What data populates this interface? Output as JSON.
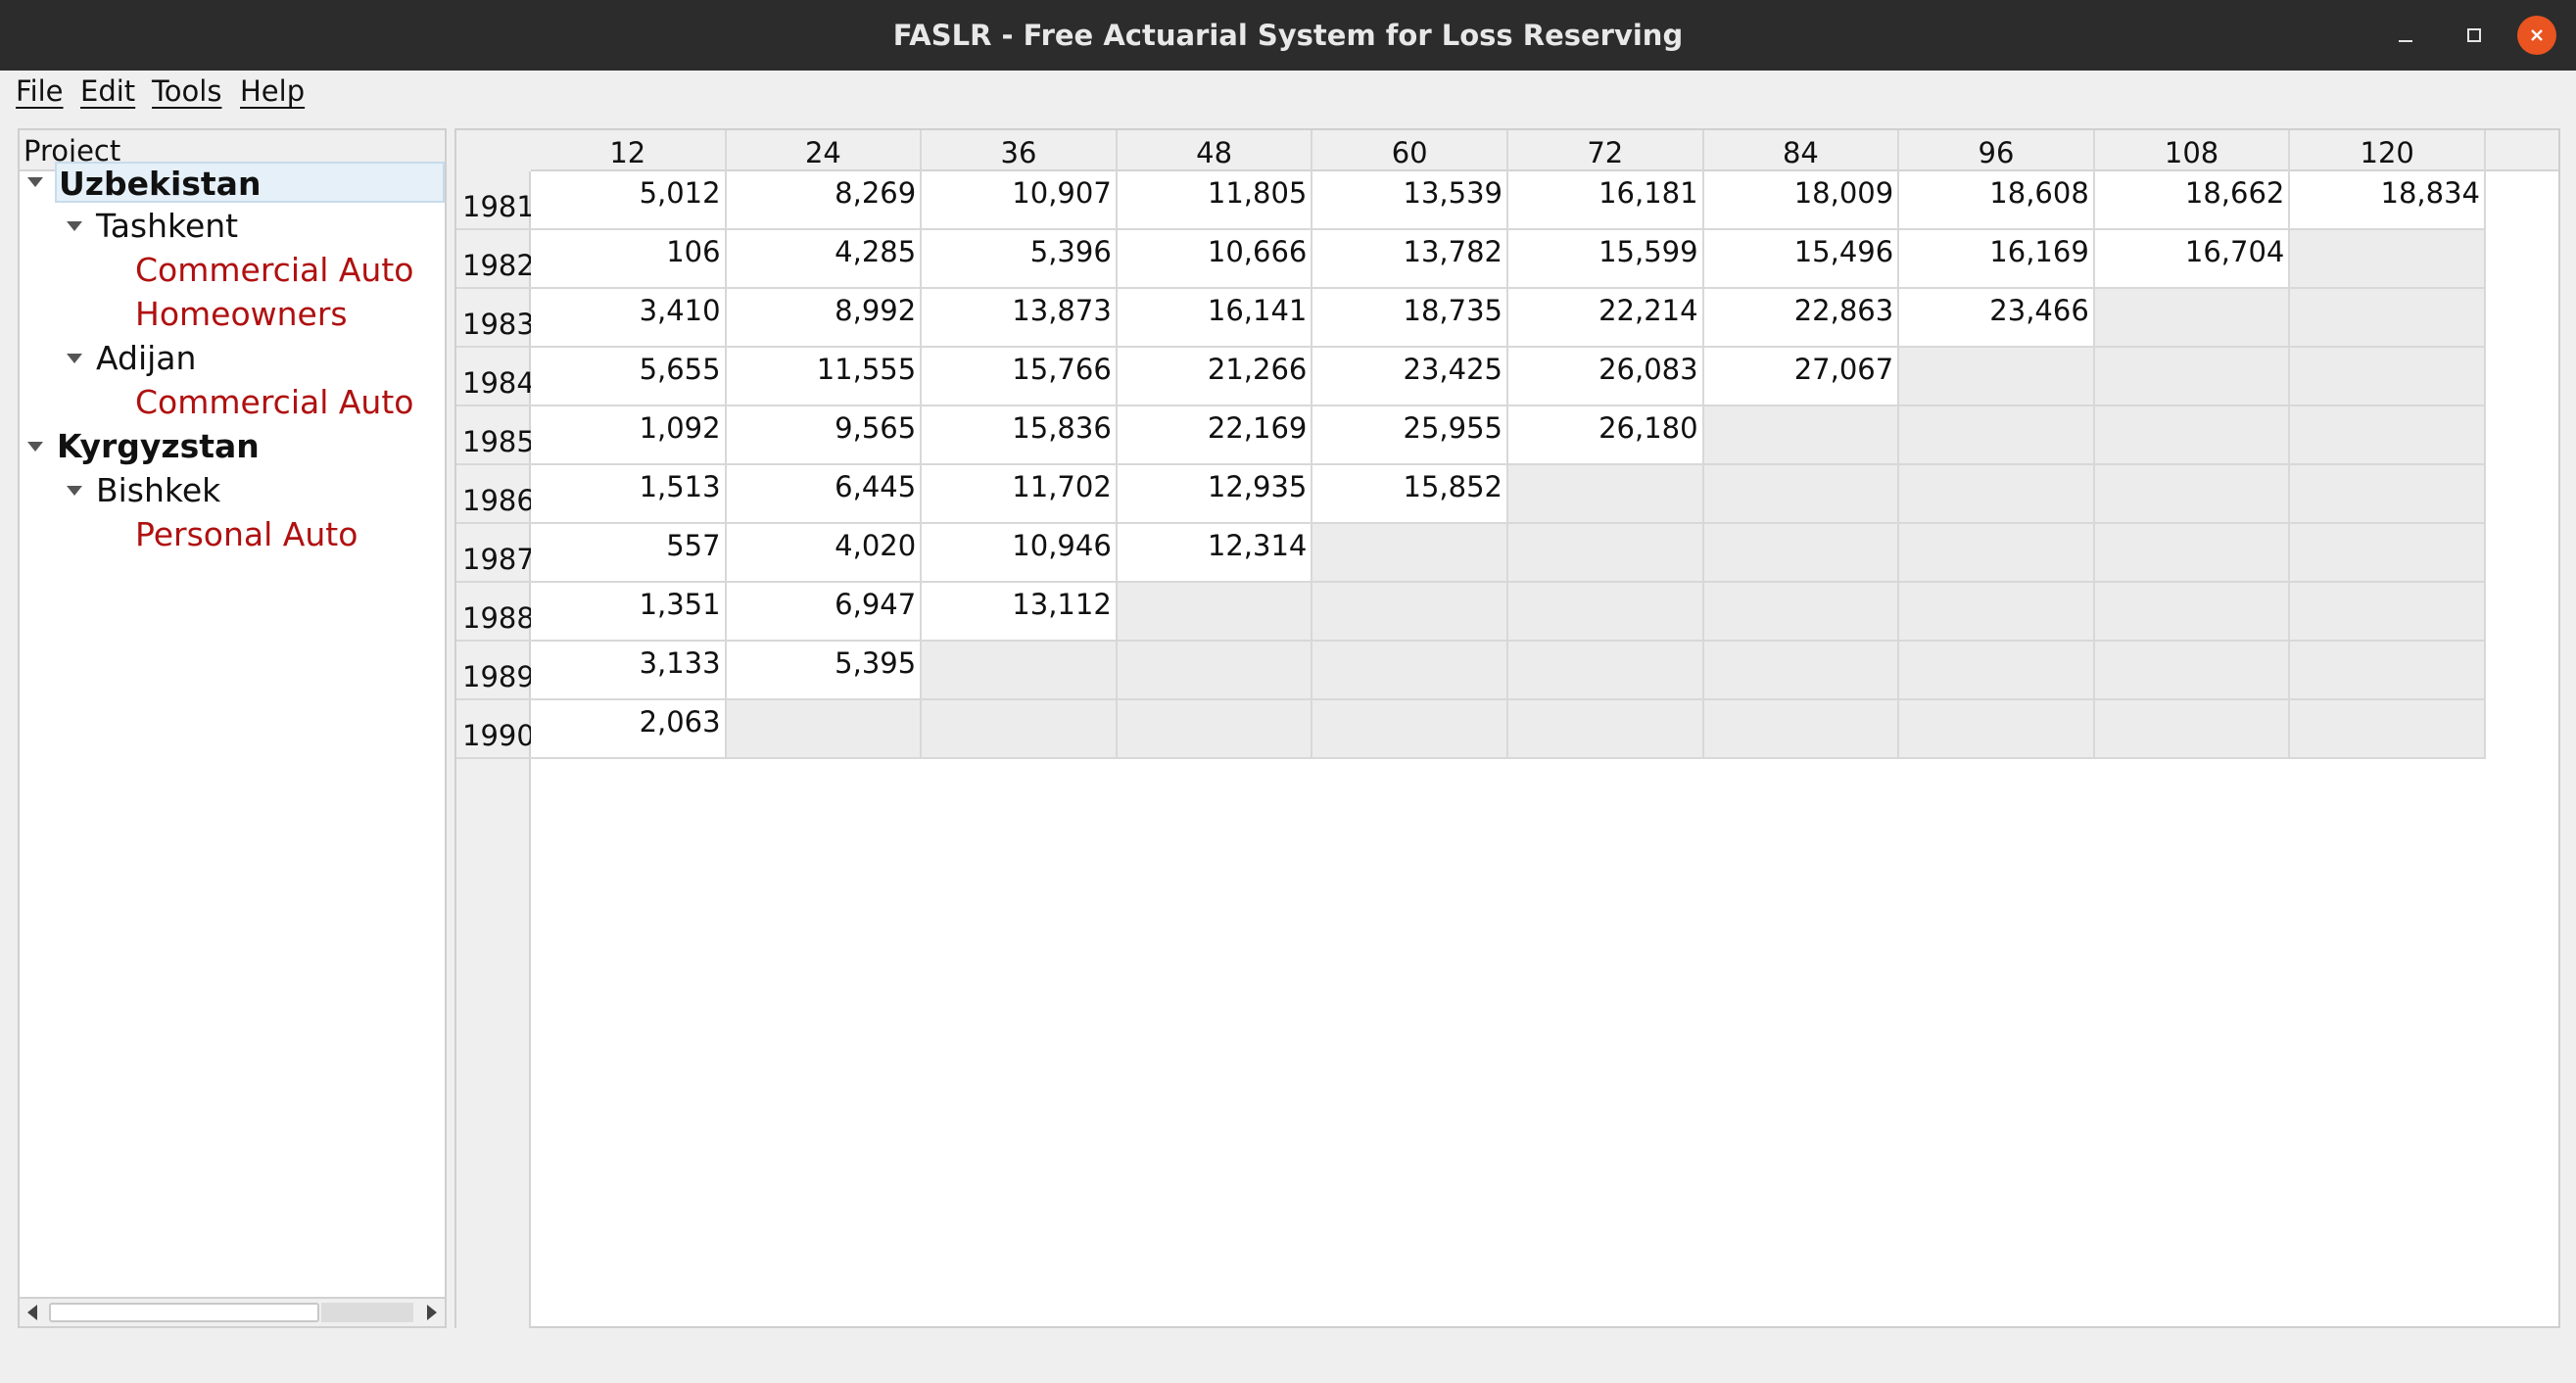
{
  "window": {
    "title": "FASLR - Free Actuarial System for Loss Reserving"
  },
  "menu": {
    "file": "File",
    "edit": "Edit",
    "tools": "Tools",
    "help": "Help"
  },
  "tree": {
    "header": "Project",
    "nodes": [
      {
        "label": "Uzbekistan",
        "level": 0,
        "bold": true,
        "expanded": true,
        "selected": true
      },
      {
        "label": "Tashkent",
        "level": 1,
        "expanded": true
      },
      {
        "label": "Commercial Auto",
        "level": 2,
        "leaf": true
      },
      {
        "label": "Homeowners",
        "level": 2,
        "leaf": true
      },
      {
        "label": "Adijan",
        "level": 1,
        "expanded": true
      },
      {
        "label": "Commercial Auto",
        "level": 2,
        "leaf": true
      },
      {
        "label": "Kyrgyzstan",
        "level": 0,
        "bold": true,
        "expanded": true
      },
      {
        "label": "Bishkek",
        "level": 1,
        "expanded": true
      },
      {
        "label": "Personal Auto",
        "level": 2,
        "leaf": true
      }
    ]
  },
  "triangle": {
    "columns": [
      "12",
      "24",
      "36",
      "48",
      "60",
      "72",
      "84",
      "96",
      "108",
      "120"
    ],
    "rows": [
      {
        "origin": "1981",
        "values": [
          "5,012",
          "8,269",
          "10,907",
          "11,805",
          "13,539",
          "16,181",
          "18,009",
          "18,608",
          "18,662",
          "18,834"
        ]
      },
      {
        "origin": "1982",
        "values": [
          "106",
          "4,285",
          "5,396",
          "10,666",
          "13,782",
          "15,599",
          "15,496",
          "16,169",
          "16,704"
        ]
      },
      {
        "origin": "1983",
        "values": [
          "3,410",
          "8,992",
          "13,873",
          "16,141",
          "18,735",
          "22,214",
          "22,863",
          "23,466"
        ]
      },
      {
        "origin": "1984",
        "values": [
          "5,655",
          "11,555",
          "15,766",
          "21,266",
          "23,425",
          "26,083",
          "27,067"
        ]
      },
      {
        "origin": "1985",
        "values": [
          "1,092",
          "9,565",
          "15,836",
          "22,169",
          "25,955",
          "26,180"
        ]
      },
      {
        "origin": "1986",
        "values": [
          "1,513",
          "6,445",
          "11,702",
          "12,935",
          "15,852"
        ]
      },
      {
        "origin": "1987",
        "values": [
          "557",
          "4,020",
          "10,946",
          "12,314"
        ]
      },
      {
        "origin": "1988",
        "values": [
          "1,351",
          "6,947",
          "13,112"
        ]
      },
      {
        "origin": "1989",
        "values": [
          "3,133",
          "5,395"
        ]
      },
      {
        "origin": "1990",
        "values": [
          "2,063"
        ]
      }
    ]
  }
}
